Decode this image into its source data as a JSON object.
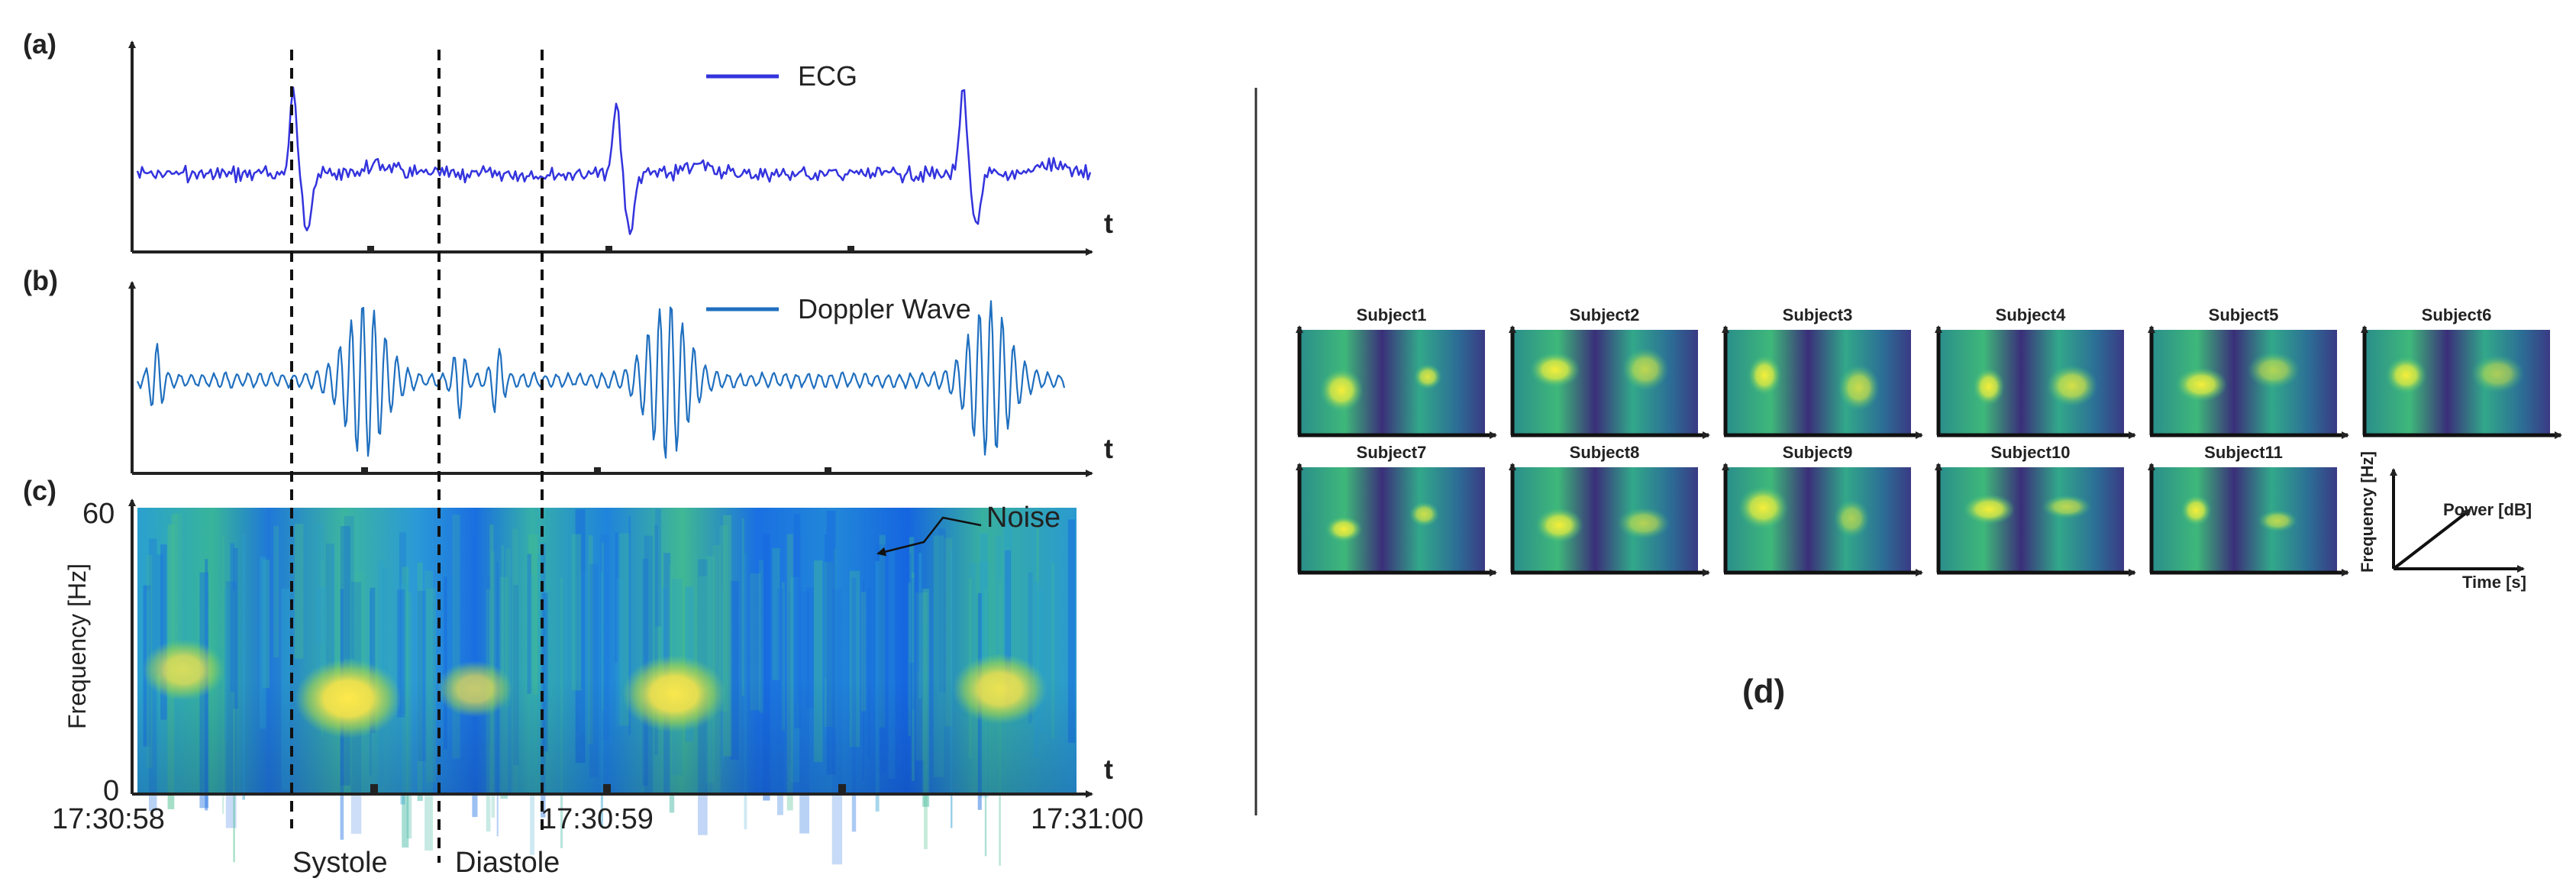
{
  "panel_labels": {
    "a": "(a)",
    "b": "(b)",
    "c": "(c)",
    "d": "(d)"
  },
  "chart_data": [
    {
      "type": "line",
      "panel": "a",
      "series": [
        {
          "name": "ECG",
          "color": "#3333dd"
        }
      ],
      "xlabel": "t",
      "legend": "top-right",
      "r_peak_times_s": [
        0.4,
        1.23,
        2.12
      ],
      "x_range_s": [
        0,
        2.45
      ]
    },
    {
      "type": "line",
      "panel": "b",
      "series": [
        {
          "name": "Doppler Wave",
          "color": "#1f6fbf"
        }
      ],
      "xlabel": "t",
      "legend": "top-right",
      "burst_times_s": [
        0.6,
        1.4,
        2.25
      ],
      "x_range_s": [
        0,
        2.45
      ]
    },
    {
      "type": "heatmap",
      "panel": "c",
      "xlabel": "t",
      "ylabel": "Frequency [Hz]",
      "ylim": [
        0,
        60
      ],
      "yticks": [
        "0",
        "60"
      ],
      "xticks": [
        "17:30:58",
        "17:30:59",
        "17:31:00"
      ],
      "annotation": "Noise",
      "phases": [
        "Systole",
        "Diastole"
      ],
      "hotspots": [
        {
          "time_s": 0.12,
          "freq_hz": 26,
          "intensity": 0.6
        },
        {
          "time_s": 0.55,
          "freq_hz": 20,
          "intensity": 1.0
        },
        {
          "time_s": 0.88,
          "freq_hz": 22,
          "intensity": 0.5
        },
        {
          "time_s": 1.4,
          "freq_hz": 21,
          "intensity": 0.95
        },
        {
          "time_s": 2.25,
          "freq_hz": 22,
          "intensity": 0.8
        }
      ]
    },
    {
      "type": "heatmap",
      "panel": "d",
      "subjects": [
        "Subject1",
        "Subject2",
        "Subject3",
        "Subject4",
        "Subject5",
        "Subject6",
        "Subject7",
        "Subject8",
        "Subject9",
        "Subject10",
        "Subject11"
      ],
      "key": {
        "y": "Frequency [Hz]",
        "x": "Time [s]",
        "diag": "Power [dB]"
      }
    }
  ]
}
